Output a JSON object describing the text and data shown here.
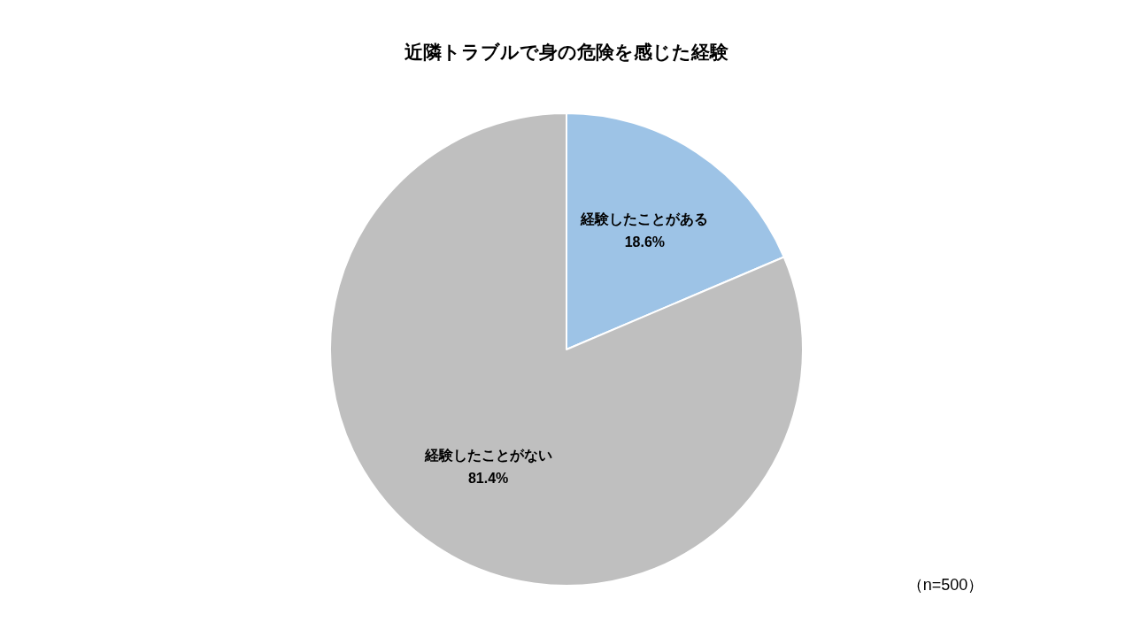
{
  "chart_data": {
    "type": "pie",
    "title": "近隣トラブルで身の危険を感じた経験",
    "categories": [
      "経験したことがある",
      "経験したことがない"
    ],
    "values": [
      18.6,
      81.4
    ],
    "colors": [
      "#9dc3e6",
      "#bfbfbf"
    ],
    "value_labels": [
      "18.6%",
      "81.4%"
    ],
    "annotations": [
      "（n=500）"
    ]
  }
}
